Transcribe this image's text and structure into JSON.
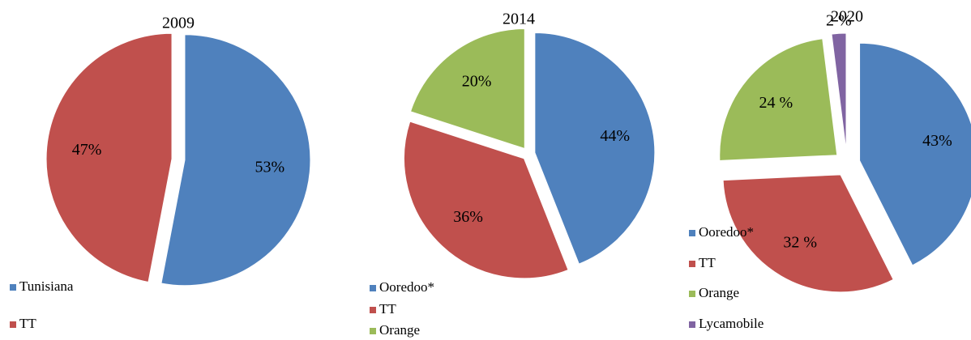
{
  "chart_data": [
    {
      "type": "pie",
      "title": "2009",
      "categories": [
        "Tunisiana",
        "TT"
      ],
      "values": [
        53,
        47
      ],
      "value_labels": [
        "53%",
        "47%"
      ],
      "colors": [
        "#4f81bd",
        "#c0504d"
      ]
    },
    {
      "type": "pie",
      "title": "2014",
      "categories": [
        "Ooredoo*",
        "TT",
        "Orange"
      ],
      "values": [
        44,
        36,
        20
      ],
      "value_labels": [
        "44%",
        "36%",
        "20%"
      ],
      "colors": [
        "#4f81bd",
        "#c0504d",
        "#9bbb59"
      ]
    },
    {
      "type": "pie",
      "title": "2020",
      "categories": [
        "Ooredoo*",
        "TT",
        "Orange",
        "Lycamobile"
      ],
      "values": [
        43,
        32,
        24,
        2
      ],
      "value_labels": [
        "43%",
        "32  %",
        "24 %",
        "2 %"
      ],
      "colors": [
        "#4f81bd",
        "#c0504d",
        "#9bbb59",
        "#8064a2"
      ]
    }
  ]
}
